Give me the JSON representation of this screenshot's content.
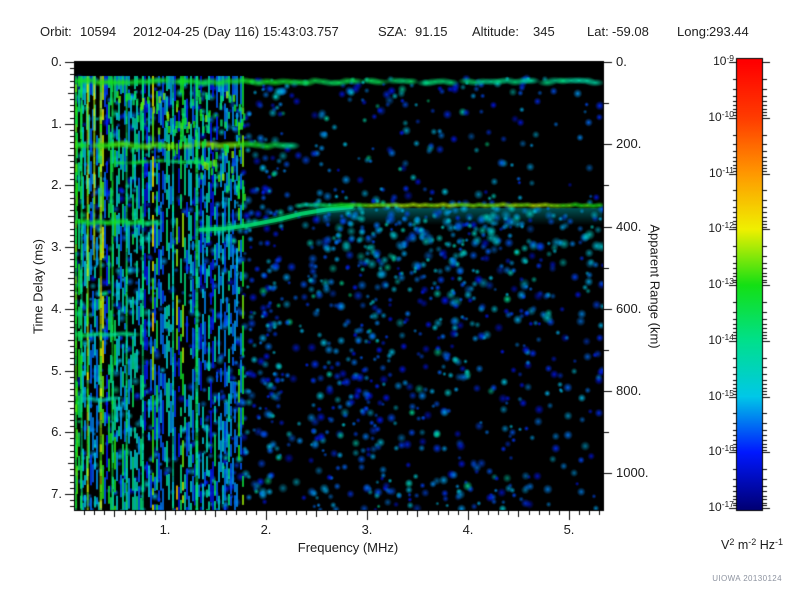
{
  "header": {
    "items": [
      {
        "id": "orbit",
        "label": "Orbit:",
        "value": "10594"
      },
      {
        "id": "datetime",
        "label": "",
        "value": "2012-04-25 (Day 116) 15:43:03.757"
      },
      {
        "id": "sza",
        "label": "SZA:",
        "value": "91.15"
      },
      {
        "id": "altitude",
        "label": "Altitude:",
        "value": "345"
      },
      {
        "id": "lat",
        "label": "Lat:",
        "value": "-59.08"
      },
      {
        "id": "long",
        "label": "Long:",
        "value": "293.44"
      }
    ]
  },
  "watermark": "UIOWA 20130124",
  "chart_data": {
    "type": "heatmap",
    "title": "",
    "x_axis": {
      "label": "Frequency (MHz)",
      "range": [
        0.109,
        5.34
      ],
      "major_ticks": [
        1,
        2,
        3,
        4,
        5
      ],
      "major_tick_labels": [
        "1.",
        "2.",
        "3.",
        "4.",
        "5."
      ],
      "minor_step": 0.1,
      "grid": false
    },
    "y_axis": {
      "label": "Time Delay (ms)",
      "range": [
        0,
        7.26
      ],
      "direction": "down",
      "major_ticks": [
        0,
        1,
        2,
        3,
        4,
        5,
        6,
        7
      ],
      "major_tick_labels": [
        "0.",
        "1.",
        "2.",
        "3.",
        "4.",
        "5.",
        "6.",
        "7."
      ],
      "minor_step": 0.1
    },
    "y_axis_right": {
      "label": "Apparent Range (km)",
      "range": [
        0,
        1089
      ],
      "direction": "down",
      "major_ticks": [
        0,
        200,
        400,
        600,
        800,
        1000
      ],
      "major_tick_labels": [
        "0.",
        "200.",
        "400.",
        "600.",
        "800.",
        "1000."
      ],
      "minor_step": 100
    },
    "colorbar": {
      "scale": "log10",
      "unit_segments": [
        {
          "t": "V"
        },
        {
          "t": "2",
          "sup": true
        },
        {
          "t": " m"
        },
        {
          "t": "-2",
          "sup": true
        },
        {
          "t": " Hz"
        },
        {
          "t": "-1",
          "sup": true
        }
      ],
      "decade_exponents": [
        "-9",
        "-10",
        "-11",
        "-12",
        "-13",
        "-14",
        "-15",
        "-16",
        "-17"
      ],
      "top_value": "1e-9",
      "bottom_value": "1e-17"
    },
    "features": [
      {
        "name": "plasma-resonance-harmonic-lines",
        "type": "vertical-lines",
        "frequencies_mhz": [
          0.12,
          0.24,
          0.3,
          0.36,
          0.48,
          0.62,
          1.31
        ]
      },
      {
        "name": "first-delay-band",
        "type": "horizontal-band",
        "time_delay_ms": 0.32,
        "freq_range_mhz": [
          0.11,
          5.33
        ]
      },
      {
        "name": "cyclotron-echo-bands",
        "type": "horizontal-bands",
        "time_delays_ms": [
          1.35,
          2.6,
          4.42,
          5.47
        ]
      },
      {
        "name": "ionospheric-echo-trace",
        "type": "curve",
        "points_mhz_ms": [
          [
            1.35,
            2.72
          ],
          [
            1.85,
            2.64
          ],
          [
            2.35,
            2.46
          ],
          [
            2.85,
            2.35
          ]
        ]
      },
      {
        "name": "surface-reflection-line",
        "type": "horizontal-line",
        "time_delay_ms": 2.32,
        "apparent_range_km": 355,
        "freq_range_mhz": [
          2.33,
          5.33
        ]
      },
      {
        "name": "diffuse-surface-scatter",
        "type": "region",
        "freq_range_mhz": [
          2.35,
          5.33
        ],
        "time_range_ms": [
          2.45,
          4.35
        ]
      }
    ],
    "render": {
      "plot_background": "#000000",
      "seed": 20130124,
      "colormap": [
        {
          "v": 0,
          "c": "#000078"
        },
        {
          "v": 0.125,
          "c": "#0018ff"
        },
        {
          "v": 0.25,
          "c": "#00c8e8"
        },
        {
          "v": 0.375,
          "c": "#00e08c"
        },
        {
          "v": 0.5,
          "c": "#14e014"
        },
        {
          "v": 0.625,
          "c": "#f0f000"
        },
        {
          "v": 0.75,
          "c": "#ff9800"
        },
        {
          "v": 0.875,
          "c": "#ff3c00"
        },
        {
          "v": 1,
          "c": "#ff0000"
        }
      ],
      "speckle": {
        "count": 3000
      },
      "stripe_field": {
        "f0": 0.11,
        "f1": 1.78
      },
      "dark_columns": [
        {
          "f0": 0.95,
          "f1": 1.25,
          "tmin": 1.75,
          "k": 0.3
        },
        {
          "f0": 2.18,
          "f1": 2.44,
          "tmin": 0,
          "k": 0.3
        },
        {
          "f0": 4.75,
          "f1": 5.05,
          "tmin": 2.6,
          "k": 0.55
        }
      ],
      "vlines": [
        {
          "f": 0.115,
          "v": 0.5,
          "w": 3
        },
        {
          "f": 0.175,
          "v": 0.42,
          "w": 2
        },
        {
          "f": 0.235,
          "v": 0.57,
          "w": 2
        },
        {
          "f": 0.3,
          "v": 0.6,
          "w": 2,
          "t1": 3.1
        },
        {
          "f": 0.365,
          "v": 0.57,
          "w": 2.5
        },
        {
          "f": 0.48,
          "v": 0.46,
          "w": 2
        },
        {
          "f": 0.62,
          "v": 0.42,
          "w": 2
        },
        {
          "f": 0.78,
          "v": 0.36,
          "w": 2
        },
        {
          "f": 1.08,
          "v": 0.34,
          "w": 2
        },
        {
          "f": 1.315,
          "v": 0.42,
          "w": 3
        }
      ],
      "bands": [
        {
          "t": 0.32,
          "h": 5.5,
          "f0": 0.109,
          "f1": 5.33,
          "vstops": [
            [
              0.109,
              0.5
            ],
            [
              1.8,
              0.48
            ],
            [
              2.6,
              0.44
            ],
            [
              3.6,
              0.4
            ],
            [
              4.6,
              0.37
            ],
            [
              5.33,
              0.36
            ]
          ],
          "skip0": 0.02,
          "skip1": 0.2
        },
        {
          "t": 1.35,
          "h": 6,
          "f0": 0.109,
          "f1": 2.28,
          "vstops": [
            [
              0.109,
              0.5
            ],
            [
              0.9,
              0.54
            ],
            [
              1.35,
              0.58
            ],
            [
              1.8,
              0.52
            ],
            [
              2.1,
              0.42
            ],
            [
              2.28,
              0.34
            ]
          ],
          "skip0": 0.05,
          "skip1": 0.12
        },
        {
          "t": 1.62,
          "h": 4,
          "f0": 0.55,
          "f1": 1.6,
          "vstops": [
            [
              0.55,
              0.46
            ],
            [
              1.6,
              0.42
            ]
          ],
          "skip0": 0.25,
          "skip1": 0.35
        },
        {
          "t": 2.6,
          "h": 5,
          "f0": 0.109,
          "f1": 1.05,
          "vstops": [
            [
              0.109,
              0.48
            ],
            [
              0.7,
              0.46
            ],
            [
              1.05,
              0.38
            ]
          ],
          "skip0": 0.05,
          "skip1": 0.15
        },
        {
          "t": 4.42,
          "h": 4.5,
          "f0": 0.109,
          "f1": 0.85,
          "vstops": [
            [
              0.109,
              0.42
            ],
            [
              0.85,
              0.34
            ]
          ],
          "skip0": 0.1,
          "skip1": 0.25
        },
        {
          "t": 5.47,
          "h": 4,
          "f0": 0.109,
          "f1": 0.55,
          "vstops": [
            [
              0.109,
              0.36
            ],
            [
              0.55,
              0.3
            ]
          ],
          "skip0": 0.1,
          "skip1": 0.3
        }
      ],
      "cusp_scatter": {
        "f0": 0.5,
        "f1": 1.78,
        "t0": 0.45,
        "t1": 2.15,
        "count": 170
      },
      "trace": {
        "v": 0.4,
        "points": [
          [
            1.35,
            2.72
          ],
          [
            1.6,
            2.7
          ],
          [
            1.85,
            2.64
          ],
          [
            2.1,
            2.56
          ],
          [
            2.35,
            2.46
          ],
          [
            2.6,
            2.39
          ],
          [
            2.85,
            2.35
          ]
        ]
      },
      "ground_line": {
        "t": 2.32,
        "f0": 2.33,
        "f1": 5.33,
        "h": 3.4,
        "vstops": [
          [
            2.33,
            0.34
          ],
          [
            2.6,
            0.42
          ],
          [
            2.8,
            0.5
          ],
          [
            3.1,
            0.56
          ],
          [
            3.6,
            0.58
          ],
          [
            4.1,
            0.55
          ],
          [
            4.7,
            0.58
          ],
          [
            5.1,
            0.52
          ],
          [
            5.33,
            0.5
          ]
        ]
      },
      "fan": {
        "f0": 2.35,
        "f1": 5.33,
        "t0": 2.45,
        "t1": 4.35,
        "count": 520
      }
    }
  }
}
